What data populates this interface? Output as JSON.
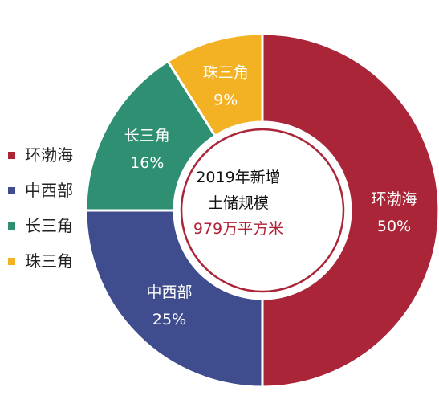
{
  "chart_data": {
    "type": "pie",
    "categories": [
      "环渤海",
      "中西部",
      "长三角",
      "珠三角"
    ],
    "values": [
      50,
      25,
      16,
      9
    ],
    "value_labels": [
      "50%",
      "25%",
      "16%",
      "9%"
    ],
    "colors": [
      "#ab2538",
      "#3f4d8e",
      "#2f8f72",
      "#f3b223"
    ],
    "center_title_line1": "2019年新增",
    "center_title_line2": "土储规模",
    "center_value": "979万平方米",
    "center_ring_color": "#ab2538",
    "legend_position": "left",
    "title": "",
    "xlabel": "",
    "ylabel": ""
  }
}
